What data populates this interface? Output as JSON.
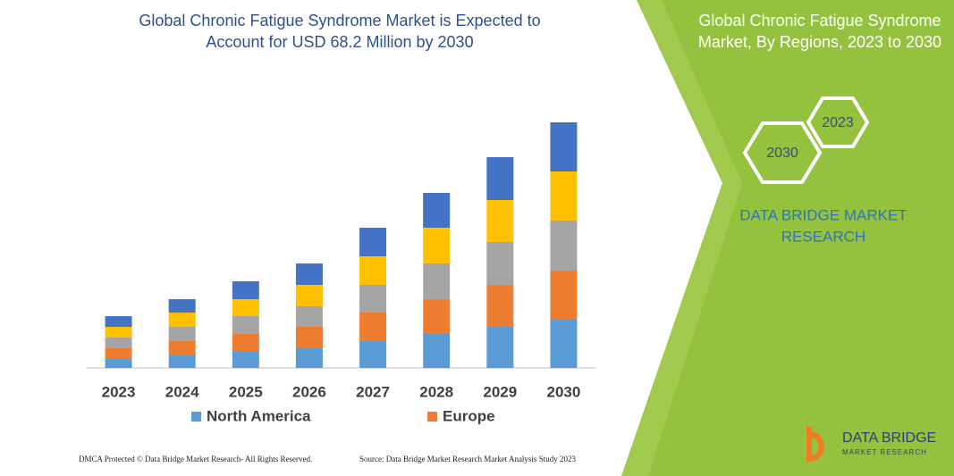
{
  "chart_data": {
    "type": "stacked-bar",
    "title": [
      "Global Chronic Fatigue Syndrome Market is Expected to",
      "Account for USD 68.2 Million by 2030"
    ],
    "categories": [
      "2023",
      "2024",
      "2025",
      "2026",
      "2027",
      "2028",
      "2029",
      "2030"
    ],
    "series": [
      {
        "name": "North America",
        "color": "#5b9bd5",
        "values": [
          10,
          14,
          18,
          22,
          30,
          38,
          46,
          54
        ]
      },
      {
        "name": "Europe",
        "color": "#ed7d31",
        "values": [
          12,
          16,
          20,
          24,
          32,
          39,
          47,
          55
        ]
      },
      {
        "color": "#a5a5a5",
        "values": [
          12,
          16,
          20,
          23,
          31,
          40,
          48,
          56
        ]
      },
      {
        "color": "#ffc000",
        "values": [
          12,
          16,
          19,
          24,
          32,
          40,
          47,
          55
        ]
      },
      {
        "color": "#4472c4",
        "values": [
          12,
          15,
          20,
          24,
          32,
          39,
          48,
          55
        ]
      }
    ],
    "ylim": [
      0,
      290
    ]
  },
  "panel": {
    "title": [
      "Global Chronic Fatigue Syndrome",
      "Market, By Regions, 2023 to 2030"
    ],
    "hexagons": [
      "2023",
      "2030"
    ],
    "brand": [
      "DATA BRIDGE MARKET",
      "RESEARCH"
    ]
  },
  "footer": {
    "copyright": "DMCA Protected © Data Bridge Market Research-  All Rights Reserved.",
    "source": "Source: Data Bridge Market Research  Market Analysis Study 2023"
  },
  "logo": {
    "name": "DATA BRIDGE",
    "tagline": "MARKET   RESEARCH"
  }
}
